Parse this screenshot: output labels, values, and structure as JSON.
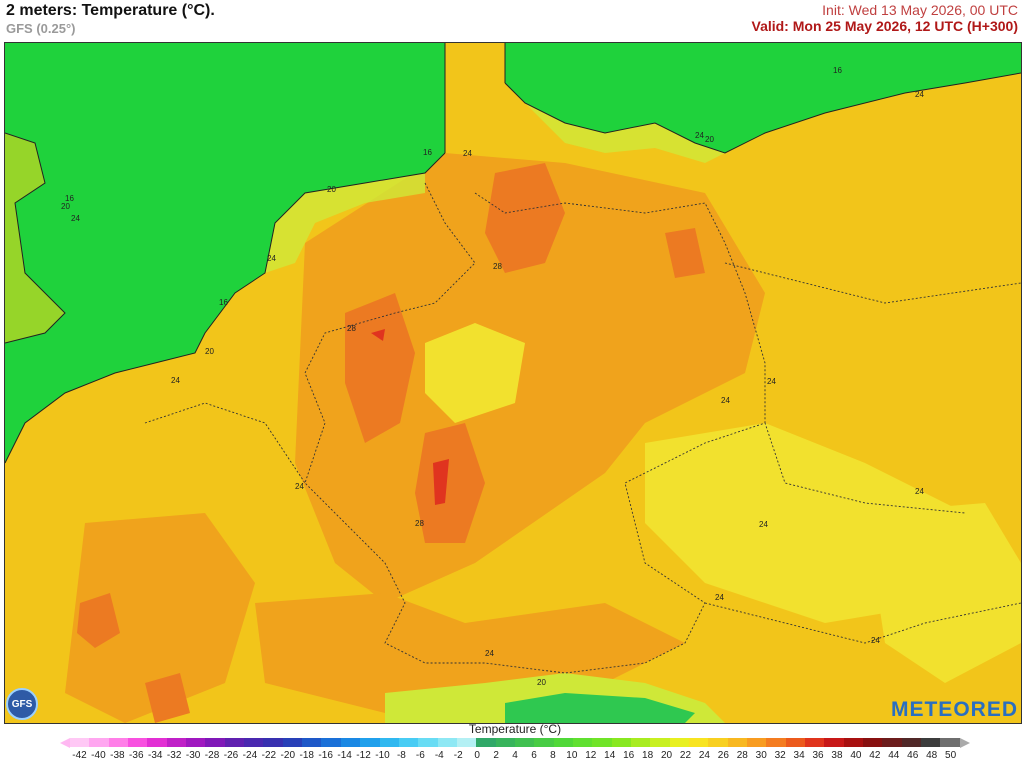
{
  "header": {
    "title": "2 meters: Temperature (°C).",
    "model": "GFS (0.25°)",
    "init": "Init: Wed 13 May 2026, 00 UTC",
    "valid": "Valid: Mon 25 May 2026, 12 UTC (H+300)"
  },
  "map": {
    "contour_labels": [
      "16",
      "20",
      "24",
      "16",
      "20",
      "24",
      "28",
      "28",
      "28",
      "24",
      "24",
      "24",
      "20",
      "16",
      "24",
      "20",
      "24",
      "16",
      "24",
      "24",
      "24",
      "24",
      "24",
      "20",
      "24",
      "24"
    ],
    "colors": {
      "sea_green": "#1fd23c",
      "t16": "#6fdc30",
      "t20": "#cfe838",
      "t22": "#f2e12e",
      "t24": "#f2c51a",
      "t26": "#f0a31c",
      "t28": "#ec7a22",
      "t30": "#e0341f"
    }
  },
  "logos": {
    "gfs": "GFS",
    "brand": "METEORED"
  },
  "legend": {
    "title": "Temperature (°C)",
    "ticks": [
      "-42",
      "-40",
      "-38",
      "-36",
      "-34",
      "-32",
      "-30",
      "-28",
      "-26",
      "-24",
      "-22",
      "-20",
      "-18",
      "-16",
      "-14",
      "-12",
      "-10",
      "-8",
      "-6",
      "-4",
      "-2",
      "0",
      "2",
      "4",
      "6",
      "8",
      "10",
      "12",
      "14",
      "16",
      "18",
      "20",
      "22",
      "24",
      "26",
      "28",
      "30",
      "32",
      "34",
      "36",
      "38",
      "40",
      "42",
      "44",
      "46",
      "48",
      "50"
    ],
    "colors": [
      "#ffc8f5",
      "#ffa6f0",
      "#ff7ee8",
      "#f850e0",
      "#e22fd4",
      "#c020c8",
      "#a018c0",
      "#8018b8",
      "#6020b0",
      "#4a28b0",
      "#3830b0",
      "#2840b8",
      "#1e58c8",
      "#1a70d8",
      "#1a88e4",
      "#20a0ec",
      "#30b8f0",
      "#48ccf4",
      "#68dcf4",
      "#8ee8f4",
      "#b4f0f4",
      "#30a868",
      "#38b45c",
      "#40c050",
      "#48cc44",
      "#50d838",
      "#60e030",
      "#70e428",
      "#88e820",
      "#a8ec20",
      "#c8f020",
      "#e8f020",
      "#f8e420",
      "#f8d020",
      "#f8b820",
      "#f89c20",
      "#f47c20",
      "#ec5a1c",
      "#e0341c",
      "#c81818",
      "#a81010",
      "#881010",
      "#6c1c1c",
      "#502828",
      "#3c3c3c",
      "#6e6e6e"
    ]
  }
}
